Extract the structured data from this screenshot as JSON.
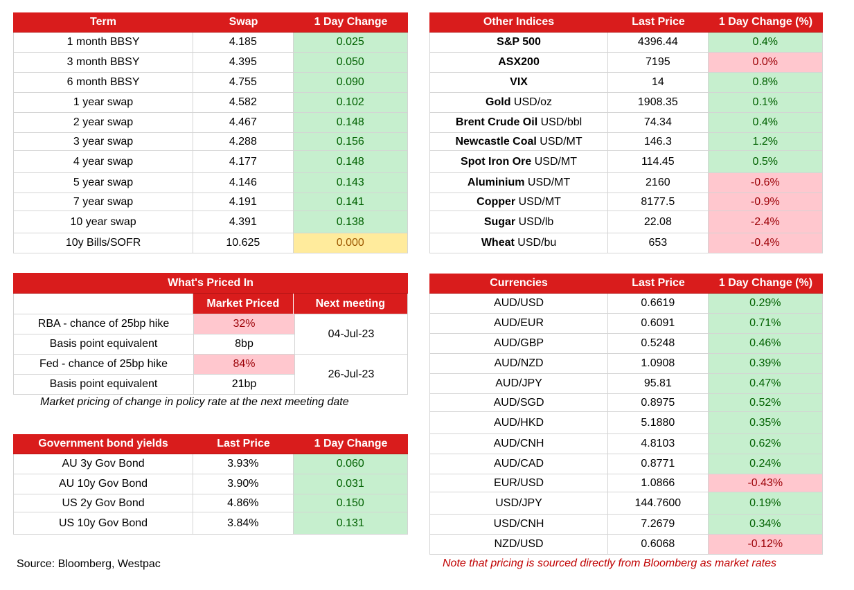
{
  "swaps": {
    "headers": [
      "Term",
      "Swap",
      "1 Day Change"
    ],
    "rows": [
      {
        "term": "1 month BBSY",
        "swap": "4.185",
        "change": "0.025"
      },
      {
        "term": "3 month BBSY",
        "swap": "4.395",
        "change": "0.050"
      },
      {
        "term": "6 month BBSY",
        "swap": "4.755",
        "change": "0.090"
      },
      {
        "term": "1 year swap",
        "swap": "4.582",
        "change": "0.102"
      },
      {
        "term": "2 year swap",
        "swap": "4.467",
        "change": "0.148"
      },
      {
        "term": "3 year swap",
        "swap": "4.288",
        "change": "0.156"
      },
      {
        "term": "4 year swap",
        "swap": "4.177",
        "change": "0.148"
      },
      {
        "term": "5 year swap",
        "swap": "4.146",
        "change": "0.143"
      },
      {
        "term": "7 year swap",
        "swap": "4.191",
        "change": "0.141"
      },
      {
        "term": "10 year swap",
        "swap": "4.391",
        "change": "0.138"
      },
      {
        "term": "10y Bills/SOFR",
        "swap": "10.625",
        "change": "0.000"
      }
    ]
  },
  "indices": {
    "headers": [
      "Other Indices",
      "Last Price",
      "1 Day Change (%)"
    ],
    "rows": [
      {
        "name": "S&P 500",
        "unit": "",
        "price": "4396.44",
        "change": "0.4%"
      },
      {
        "name": "ASX200",
        "unit": "",
        "price": "7195",
        "change": "0.0%"
      },
      {
        "name": "VIX",
        "unit": "",
        "price": "14",
        "change": "0.8%"
      },
      {
        "name": "Gold",
        "unit": " USD/oz",
        "price": "1908.35",
        "change": "0.1%"
      },
      {
        "name": "Brent Crude Oil",
        "unit": " USD/bbl",
        "price": "74.34",
        "change": "0.4%"
      },
      {
        "name": "Newcastle Coal",
        "unit": " USD/MT",
        "price": "146.3",
        "change": "1.2%"
      },
      {
        "name": "Spot Iron Ore",
        "unit": " USD/MT",
        "price": "114.45",
        "change": "0.5%"
      },
      {
        "name": "Aluminium",
        "unit": " USD/MT",
        "price": "2160",
        "change": "-0.6%"
      },
      {
        "name": "Copper",
        "unit": " USD/MT",
        "price": "8177.5",
        "change": "-0.9%"
      },
      {
        "name": "Sugar",
        "unit": " USD/lb",
        "price": "22.08",
        "change": "-2.4%"
      },
      {
        "name": "Wheat",
        "unit": " USD/bu",
        "price": "653",
        "change": "-0.4%"
      }
    ]
  },
  "priced_in": {
    "title": "What's Priced In",
    "col_market": "Market Priced",
    "col_meeting": "Next meeting",
    "rba_label": "RBA - chance of 25bp hike",
    "rba_value": "32%",
    "rba_bp_label": "Basis point equivalent",
    "rba_bp_value": "8bp",
    "rba_meeting": "04-Jul-23",
    "fed_label": "Fed - chance of 25bp hike",
    "fed_value": "84%",
    "fed_bp_label": "Basis point equivalent",
    "fed_bp_value": "21bp",
    "fed_meeting": "26-Jul-23",
    "note": "Market pricing of change in policy rate at the next meeting date"
  },
  "bonds": {
    "headers": [
      "Government bond yields",
      "Last Price",
      "1 Day Change"
    ],
    "rows": [
      {
        "name": "AU 3y Gov Bond",
        "price": "3.93%",
        "change": "0.060"
      },
      {
        "name": "AU 10y Gov Bond",
        "price": "3.90%",
        "change": "0.031"
      },
      {
        "name": "US 2y Gov Bond",
        "price": "4.86%",
        "change": "0.150"
      },
      {
        "name": "US 10y Gov Bond",
        "price": "3.84%",
        "change": "0.131"
      }
    ]
  },
  "currencies": {
    "headers": [
      "Currencies",
      "Last Price",
      "1 Day Change (%)"
    ],
    "rows": [
      {
        "pair": "AUD/USD",
        "price": "0.6619",
        "change": "0.29%"
      },
      {
        "pair": "AUD/EUR",
        "price": "0.6091",
        "change": "0.71%"
      },
      {
        "pair": "AUD/GBP",
        "price": "0.5248",
        "change": "0.46%"
      },
      {
        "pair": "AUD/NZD",
        "price": "1.0908",
        "change": "0.39%"
      },
      {
        "pair": "AUD/JPY",
        "price": "95.81",
        "change": "0.47%"
      },
      {
        "pair": "AUD/SGD",
        "price": "0.8975",
        "change": "0.52%"
      },
      {
        "pair": "AUD/HKD",
        "price": "5.1880",
        "change": "0.35%"
      },
      {
        "pair": "AUD/CNH",
        "price": "4.8103",
        "change": "0.62%"
      },
      {
        "pair": "AUD/CAD",
        "price": "0.8771",
        "change": "0.24%"
      },
      {
        "pair": "EUR/USD",
        "price": "1.0866",
        "change": "-0.43%"
      },
      {
        "pair": "USD/JPY",
        "price": "144.7600",
        "change": "0.19%"
      },
      {
        "pair": "USD/CNH",
        "price": "7.2679",
        "change": "0.34%"
      },
      {
        "pair": "NZD/USD",
        "price": "0.6068",
        "change": "-0.12%"
      }
    ]
  },
  "footer": {
    "source": "Source: Bloomberg, Westpac",
    "pricing_note": "Note that pricing is sourced directly from Bloomberg as market rates"
  },
  "colors": {
    "header_red": "#d91c1c",
    "positive_fill": "#c6efce",
    "negative_fill": "#ffc7ce",
    "neutral_fill": "#ffeb9c",
    "note_red": "#c00000"
  }
}
